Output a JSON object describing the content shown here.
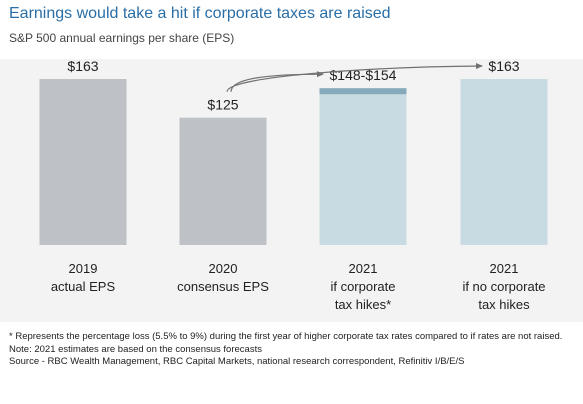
{
  "title": "Earnings would take a hit if corporate taxes are raised",
  "subtitle": "S&P 500 annual earnings per share (EPS)",
  "colors": {
    "title": "#2a6ea6",
    "gray_bar": "#bec1c5",
    "light_blue_bar": "#c8dbe2",
    "dark_blue_segment": "#86aabb",
    "panel_bg": "#f3f3f3",
    "arrow": "#707070"
  },
  "chart_data": {
    "type": "bar",
    "categories": [
      [
        "2019",
        "actual EPS"
      ],
      [
        "2020",
        "consensus EPS"
      ],
      [
        "2021",
        "if corporate",
        "tax hikes*"
      ],
      [
        "2021",
        "if no corporate",
        "tax hikes"
      ]
    ],
    "values": [
      163,
      125,
      148,
      163
    ],
    "range_top": [
      null,
      null,
      154,
      null
    ],
    "value_labels": [
      "$163",
      "$125",
      "$148-$154",
      "$163"
    ],
    "ylim": [
      0,
      163
    ],
    "grid": false,
    "legend": "none",
    "annotations": [
      "arrow from 2020 to 2021 if corporate tax hikes",
      "arrow from 2020 to 2021 if no corporate tax hikes"
    ]
  },
  "footer": {
    "note1": "* Represents the percentage loss (5.5% to 9%) during the first year of higher corporate tax rates compared to if rates are not raised.",
    "note2": "Note: 2021 estimates are based on the consensus forecasts",
    "source": "Source - RBC Wealth Management, RBC Capital Markets, national research correspondent, Refinitiv I/B/E/S"
  }
}
